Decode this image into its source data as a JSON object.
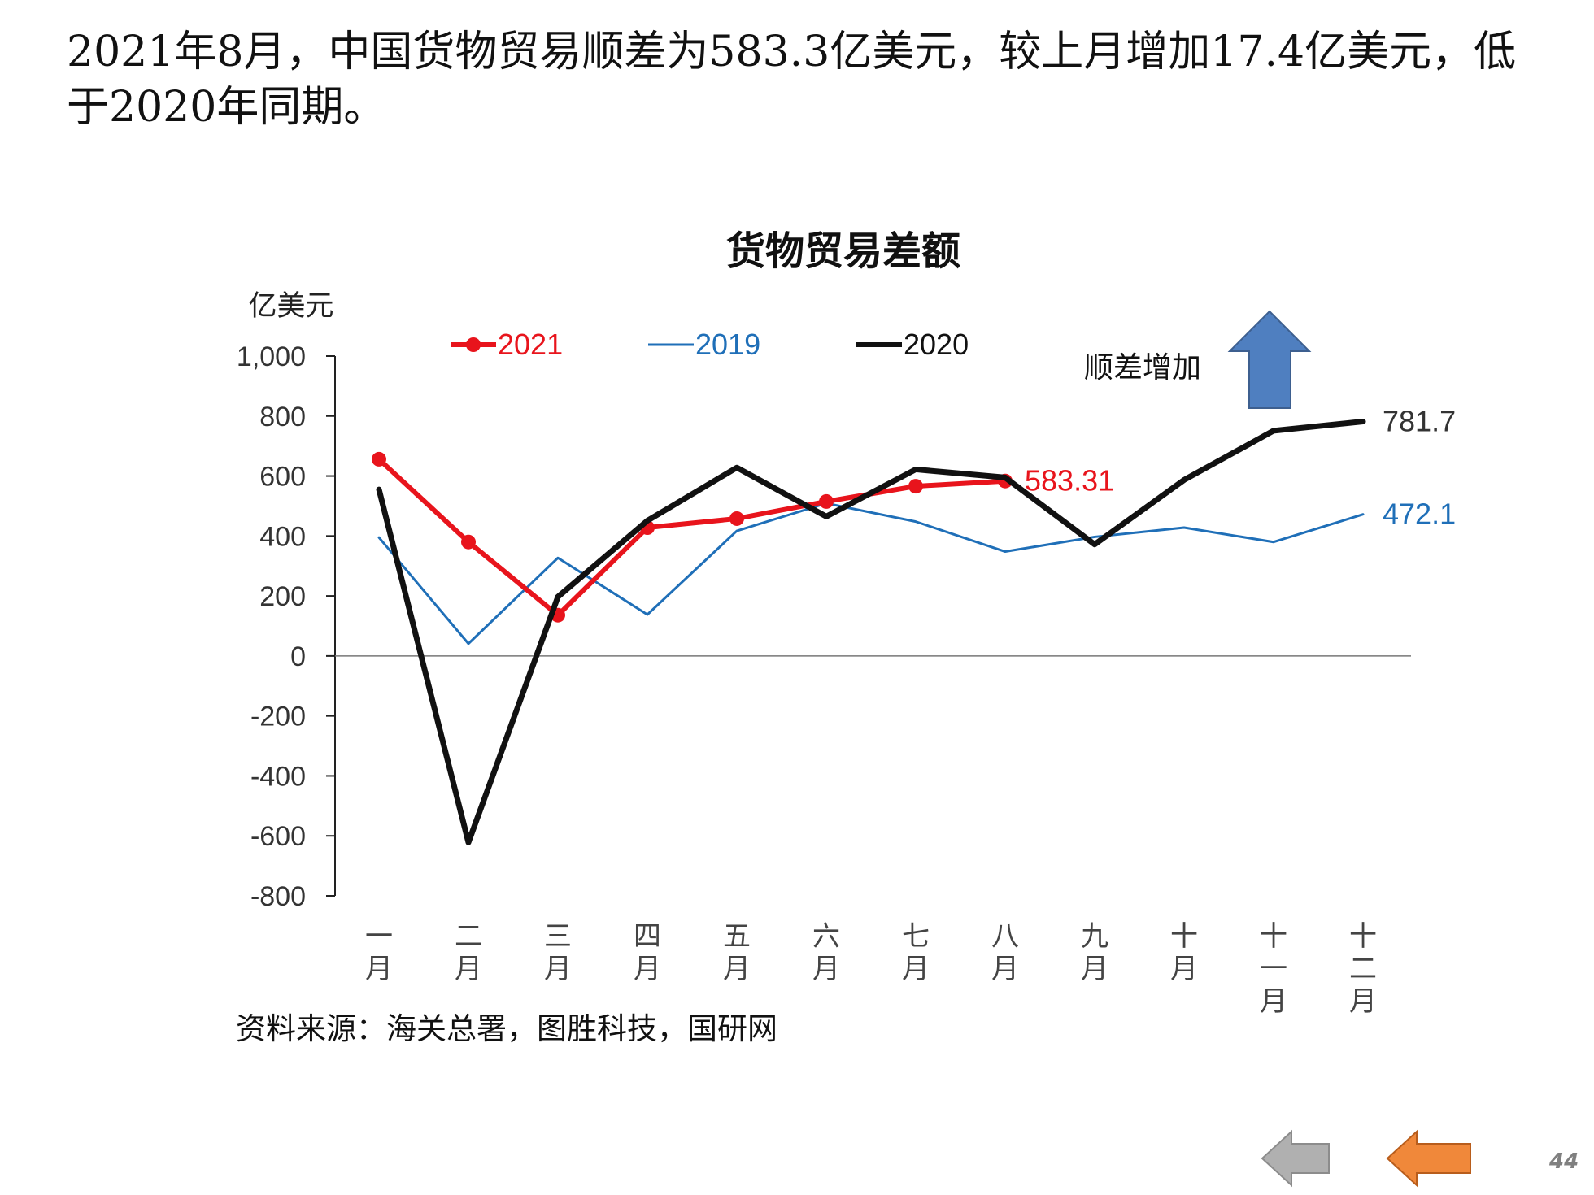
{
  "slide": {
    "headline_line1": "2021年8月，中国货物贸易顺差为583.3亿美元，较上月增加17.4亿美元，低",
    "headline_line2": "于2020年同期。",
    "source": "资料来源：海关总署，图胜科技，国研网",
    "page_number": "44"
  },
  "navigation": {
    "prev_icon": "arrow-left-icon",
    "next_icon": "arrow-left-icon",
    "prev_color": "#b0b0b0",
    "next_color": "#f0883a"
  },
  "annotation": {
    "text": "顺差增加",
    "icon": "arrow-up-icon",
    "icon_color": "#4f7fc0"
  },
  "chart_data": {
    "type": "line",
    "title": "货物贸易差额",
    "ylabel": "亿美元",
    "xlabel": "",
    "ylim": [
      -800,
      1000
    ],
    "yticks": [
      1000,
      800,
      600,
      400,
      200,
      0,
      -200,
      -400,
      -600,
      -800
    ],
    "ytick_labels": [
      "1,000",
      "800",
      "600",
      "400",
      "200",
      "0",
      "-200",
      "-400",
      "-600",
      "-800"
    ],
    "categories": [
      [
        "一",
        "月"
      ],
      [
        "二",
        "月"
      ],
      [
        "三",
        "月"
      ],
      [
        "四",
        "月"
      ],
      [
        "五",
        "月"
      ],
      [
        "六",
        "月"
      ],
      [
        "七",
        "月"
      ],
      [
        "八",
        "月"
      ],
      [
        "九",
        "月"
      ],
      [
        "十",
        "月"
      ],
      [
        "十",
        "一",
        "月"
      ],
      [
        "十",
        "二",
        "月"
      ]
    ],
    "legend_position": "top",
    "series": [
      {
        "name": "2021",
        "color": "#e8141c",
        "marker": "circle",
        "values": [
          656,
          380,
          136,
          428,
          458,
          515,
          566,
          583.31,
          null,
          null,
          null,
          null
        ],
        "end_label": "583.31"
      },
      {
        "name": "2019",
        "color": "#1f6fb8",
        "marker": "none",
        "values": [
          395,
          41,
          327,
          138,
          417,
          509,
          448,
          348,
          397,
          428,
          380,
          472.1
        ],
        "end_label": "472.1"
      },
      {
        "name": "2020",
        "color": "#111111",
        "marker": "none",
        "values": [
          555,
          -622,
          197,
          451,
          628,
          465,
          622,
          595,
          372,
          587,
          751,
          781.7
        ],
        "end_label": "781.7"
      }
    ]
  }
}
